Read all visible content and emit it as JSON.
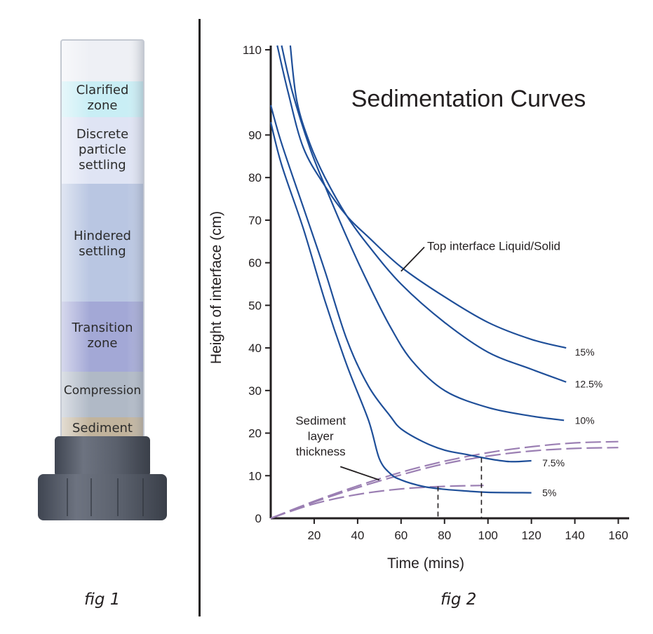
{
  "fig1": {
    "caption": "fig 1",
    "zones": [
      {
        "label": "Clarified\nzone",
        "color": "#c9eef5"
      },
      {
        "label": "Discrete\nparticle\nsettling",
        "color": "#dfe4f4"
      },
      {
        "label": "Hindered\nsettling",
        "color": "#b9c6e2"
      },
      {
        "label": "Transition\nzone",
        "color": "#a3a8d6"
      },
      {
        "label": "Compression",
        "color": "#b0b9c6"
      },
      {
        "label": "Sediment",
        "color": "#c1b39c"
      }
    ]
  },
  "fig2": {
    "caption": "fig 2"
  },
  "chart_data": {
    "type": "line",
    "title": "Sedimentation Curves",
    "xlabel": "Time (mins)",
    "ylabel": "Height of interface (cm)",
    "xlim": [
      0,
      165
    ],
    "ylim": [
      0,
      110
    ],
    "xticks": [
      20,
      40,
      60,
      80,
      100,
      120,
      140,
      160
    ],
    "yticks": [
      0,
      10,
      20,
      30,
      40,
      50,
      60,
      70,
      80,
      90,
      110
    ],
    "grid": false,
    "series": [
      {
        "name": "15%",
        "color": "#1f4f99",
        "style": "solid",
        "x": [
          3,
          8,
          15,
          25,
          35,
          45,
          60,
          80,
          100,
          120,
          136
        ],
        "y": [
          111,
          100,
          87,
          78,
          71,
          66,
          59,
          52,
          46,
          42,
          40
        ]
      },
      {
        "name": "12.5%",
        "color": "#1f4f99",
        "style": "solid",
        "x": [
          9,
          12,
          18,
          25,
          35,
          45,
          60,
          80,
          100,
          120,
          136
        ],
        "y": [
          111,
          98,
          88,
          80,
          71,
          64,
          55,
          46,
          39,
          35,
          32
        ]
      },
      {
        "name": "10%",
        "color": "#1f4f99",
        "style": "solid",
        "x": [
          5,
          10,
          18,
          25,
          35,
          45,
          55,
          65,
          80,
          100,
          120,
          135
        ],
        "y": [
          111,
          100,
          87,
          78,
          66,
          55,
          45,
          37,
          30,
          26,
          24,
          23
        ]
      },
      {
        "name": "7.5%",
        "color": "#1f4f99",
        "style": "solid",
        "x": [
          0,
          5,
          15,
          25,
          35,
          45,
          55,
          60,
          70,
          80,
          90,
          100,
          110,
          120
        ],
        "y": [
          97,
          88,
          73,
          58,
          42,
          31,
          24,
          21,
          18,
          16,
          15,
          14,
          13.3,
          13.5
        ]
      },
      {
        "name": "5%",
        "color": "#1f4f99",
        "style": "solid",
        "x": [
          0,
          5,
          15,
          25,
          35,
          45,
          50,
          55,
          60,
          70,
          80,
          90,
          100,
          120
        ],
        "y": [
          93,
          83,
          68,
          51,
          36,
          23,
          14,
          10.5,
          9,
          7.5,
          6.8,
          6.4,
          6.1,
          6
        ]
      }
    ],
    "sediment_curves": [
      {
        "x": [
          0,
          20,
          40,
          60,
          80,
          100,
          120,
          140,
          160
        ],
        "y": [
          0,
          4,
          7.6,
          10.8,
          13.4,
          15.4,
          16.8,
          17.7,
          18
        ]
      },
      {
        "x": [
          0,
          20,
          40,
          60,
          80,
          100,
          120,
          140,
          160
        ],
        "y": [
          0,
          3.8,
          7.2,
          10.2,
          12.8,
          14.6,
          15.8,
          16.4,
          16.6
        ]
      },
      {
        "x": [
          0,
          20,
          40,
          60,
          80,
          98
        ],
        "y": [
          0,
          3.4,
          5.6,
          6.9,
          7.5,
          7.7
        ]
      }
    ],
    "sediment_color": "#9b7fb3",
    "markers_x": [
      77,
      97
    ],
    "annotations": [
      {
        "text": "Top interface Liquid/Solid",
        "at_x": 72,
        "at_y": 63,
        "pointer_to": [
          60,
          58
        ]
      },
      {
        "text": "Sediment\nlayer\nthickness",
        "at_x": 23,
        "at_y": 22,
        "pointer_to": [
          50,
          9
        ]
      }
    ],
    "end_labels": [
      {
        "text": "15%",
        "x": 140,
        "y": 39
      },
      {
        "text": "12.5%",
        "x": 140,
        "y": 31.5
      },
      {
        "text": "10%",
        "x": 140,
        "y": 23
      },
      {
        "text": "7.5%",
        "x": 125,
        "y": 13
      },
      {
        "text": "5%",
        "x": 125,
        "y": 6
      }
    ]
  }
}
